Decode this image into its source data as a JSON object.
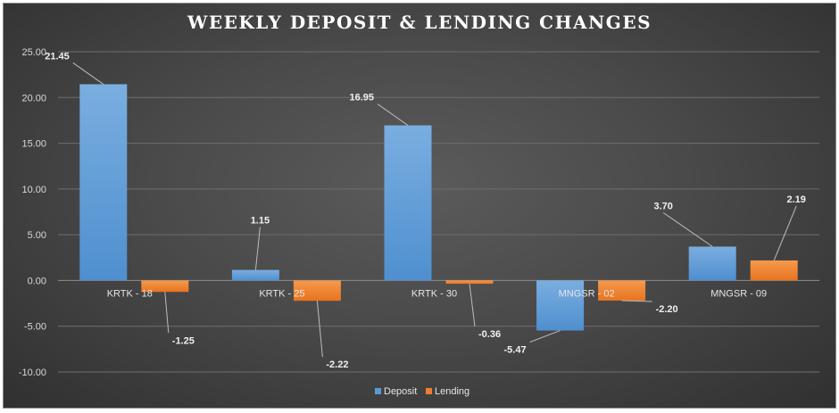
{
  "chart_data": {
    "type": "bar",
    "title": "WEEKLY DEPOSIT & LENDING CHANGES",
    "categories": [
      "KRTK - 18",
      "KRTK - 25",
      "KRTK - 30",
      "MNGSR - 02",
      "MNGSR - 09"
    ],
    "series": [
      {
        "name": "Deposit",
        "values": [
          21.45,
          1.15,
          16.95,
          -5.47,
          3.7
        ],
        "labels": [
          "21.45",
          "1.15",
          "16.95",
          "-5.47",
          "3.70"
        ],
        "color": "#5b9bd5"
      },
      {
        "name": "Lending",
        "values": [
          -1.25,
          -2.22,
          -0.36,
          -2.2,
          2.19
        ],
        "labels": [
          "-1.25",
          "-2.22",
          "-0.36",
          "-2.20",
          "2.19"
        ],
        "color": "#ed7d31"
      }
    ],
    "ylim": [
      -10,
      25
    ],
    "yticks": [
      "25.00",
      "20.00",
      "15.00",
      "10.00",
      "5.00",
      "0.00",
      "-5.00",
      "-10.00"
    ],
    "ytick_values": [
      25,
      20,
      15,
      10,
      5,
      0,
      -5,
      -10
    ],
    "grid": true,
    "legend": "bottom"
  }
}
